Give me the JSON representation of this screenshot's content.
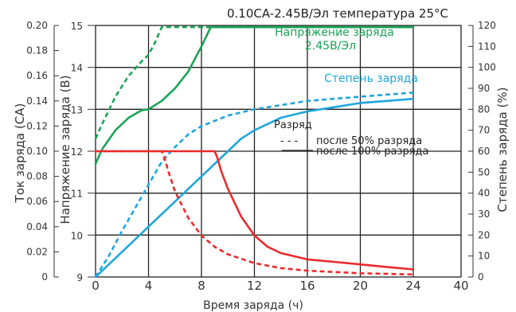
{
  "chart_data": {
    "type": "line",
    "title": "0.10CA-2.45В/Эл температура 25°C",
    "xlabel": "Время заряда (ч)",
    "ylabel_current": "Ток заряда (CA)",
    "ylabel_voltage": "Напряжение заряда (В)",
    "ylabel_degree": "Степень заряда (%)",
    "x_ticks": [
      "0",
      "4",
      "8",
      "12",
      "16",
      "20",
      "24",
      "40"
    ],
    "current_ticks": [
      "0",
      "0.02",
      "0.04",
      "0.06",
      "0.08",
      "0.10",
      "0.12",
      "0.14",
      "0.16",
      "0.18",
      "0.20"
    ],
    "voltage_ticks": [
      "9",
      "10",
      "11",
      "12",
      "13",
      "14",
      "15"
    ],
    "degree_ticks": [
      "0",
      "10",
      "20",
      "30",
      "40",
      "50",
      "60",
      "70",
      "80",
      "90",
      "100",
      "110",
      "120"
    ],
    "x_range": [
      0,
      24
    ],
    "current_range": [
      0,
      0.2
    ],
    "voltage_range": [
      9,
      15
    ],
    "degree_range": [
      0,
      120
    ],
    "grid": true,
    "labels": {
      "voltage": "Напряжение заряда",
      "voltage_setting": "2.45В/Эл",
      "degree": "Степень заряда"
    },
    "legend": {
      "title": "Разряд",
      "dashed": "после 50% разряда",
      "solid": "после 100% разряда",
      "dashed_symbol": "- - -",
      "position": "middle-right"
    },
    "colors": {
      "voltage": "#1aa457",
      "degree": "#1fa5dc",
      "current": "#ea2b2b"
    },
    "series": [
      {
        "kind": "voltage",
        "style": "solid",
        "axis": "voltage",
        "x": [
          0,
          0.5,
          1.5,
          2.5,
          3.5,
          4,
          5,
          6,
          7,
          8,
          8.7,
          9,
          10,
          12,
          16,
          20,
          24
        ],
        "y": [
          11.7,
          12.05,
          12.5,
          12.8,
          12.98,
          13.0,
          13.2,
          13.5,
          13.9,
          14.5,
          14.96,
          14.96,
          14.96,
          14.96,
          14.96,
          14.96,
          14.96
        ]
      },
      {
        "kind": "voltage",
        "style": "dashed",
        "axis": "voltage",
        "x": [
          0,
          0.5,
          1.5,
          2.5,
          3.5,
          4,
          4.5,
          5,
          5.5,
          6,
          8,
          24
        ],
        "y": [
          12.3,
          12.65,
          13.3,
          13.8,
          14.15,
          14.3,
          14.6,
          14.96,
          14.96,
          14.96,
          14.96,
          14.96
        ]
      },
      {
        "kind": "degree",
        "style": "solid",
        "axis": "degree",
        "x": [
          0,
          2,
          4,
          6,
          8,
          9,
          10,
          11,
          12,
          14,
          16,
          18,
          20,
          22,
          24
        ],
        "y": [
          0,
          12,
          24,
          36,
          48,
          54,
          60,
          66,
          70,
          76,
          79,
          81,
          83,
          84,
          85
        ]
      },
      {
        "kind": "degree",
        "style": "dashed",
        "axis": "degree",
        "x": [
          0,
          1,
          2,
          3,
          4,
          5,
          6,
          7,
          8,
          10,
          12,
          16,
          20,
          24
        ],
        "y": [
          0,
          10,
          22,
          33,
          44,
          55,
          62,
          68,
          72,
          77,
          80,
          84,
          86,
          88
        ]
      },
      {
        "kind": "current",
        "style": "solid",
        "axis": "current",
        "x": [
          0,
          9,
          9.2,
          9.5,
          10,
          11,
          12,
          13,
          14,
          16,
          18,
          20,
          22,
          24
        ],
        "y": [
          0.1,
          0.1,
          0.095,
          0.084,
          0.07,
          0.048,
          0.033,
          0.024,
          0.019,
          0.014,
          0.012,
          0.01,
          0.008,
          0.006
        ]
      },
      {
        "kind": "current",
        "style": "dashed",
        "axis": "current",
        "x": [
          0,
          5,
          5.2,
          5.5,
          6,
          7,
          8,
          9,
          10,
          12,
          14,
          16,
          20,
          24
        ],
        "y": [
          0.1,
          0.1,
          0.095,
          0.084,
          0.068,
          0.047,
          0.033,
          0.024,
          0.018,
          0.011,
          0.007,
          0.005,
          0.003,
          0.002
        ]
      }
    ]
  }
}
